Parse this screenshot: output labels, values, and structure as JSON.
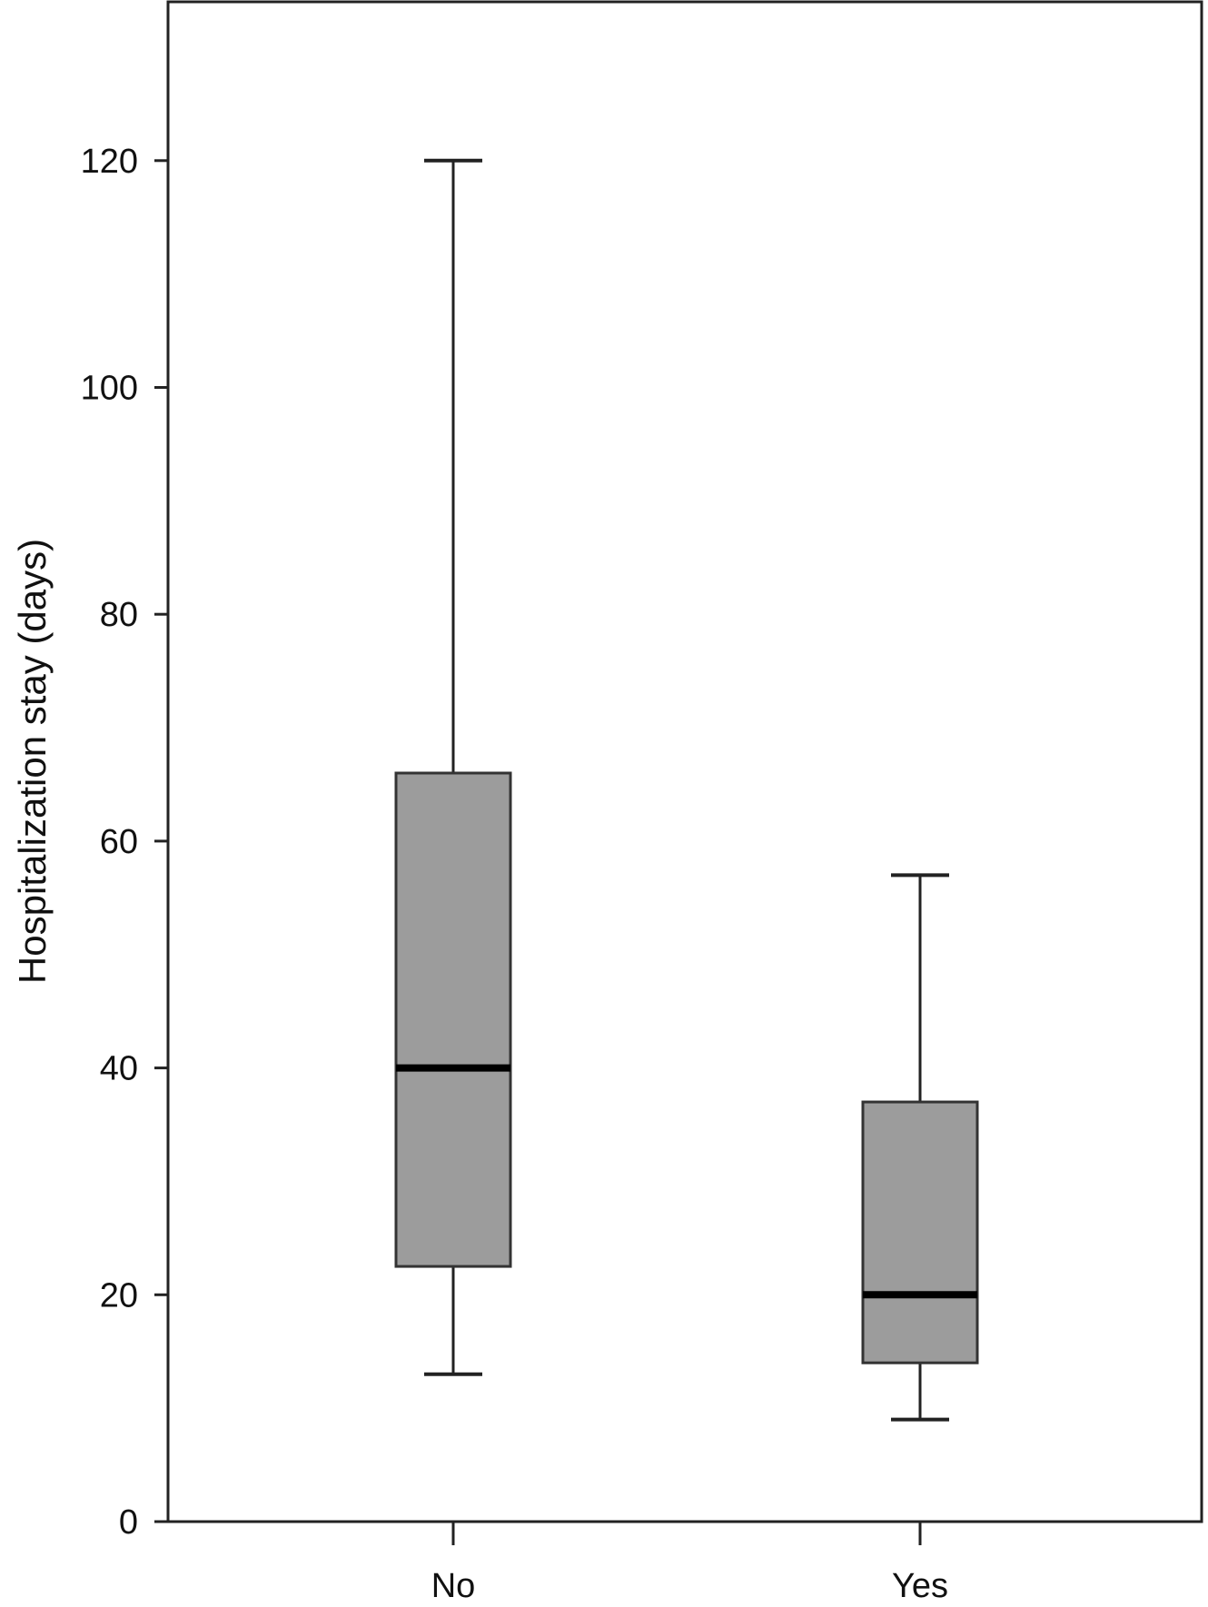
{
  "chart_data": {
    "type": "boxplot",
    "title": "",
    "xlabel": "",
    "ylabel": "Hospitalization stay (days)",
    "ylim": [
      0,
      134
    ],
    "yticks": [
      0,
      20,
      40,
      60,
      80,
      100,
      120
    ],
    "grid": false,
    "legend": "none",
    "categories": [
      "No",
      "Yes"
    ],
    "boxes": [
      {
        "category": "No",
        "whisker_low": 13,
        "q1": 22.5,
        "median": 40,
        "q3": 66,
        "whisker_high": 120
      },
      {
        "category": "Yes",
        "whisker_low": 9,
        "q1": 14,
        "median": 20,
        "q3": 37,
        "whisker_high": 57
      }
    ],
    "colors": {
      "box_fill": "#9c9c9c",
      "box_stroke": "#333333",
      "median": "#000000",
      "axis": "#222222"
    }
  }
}
